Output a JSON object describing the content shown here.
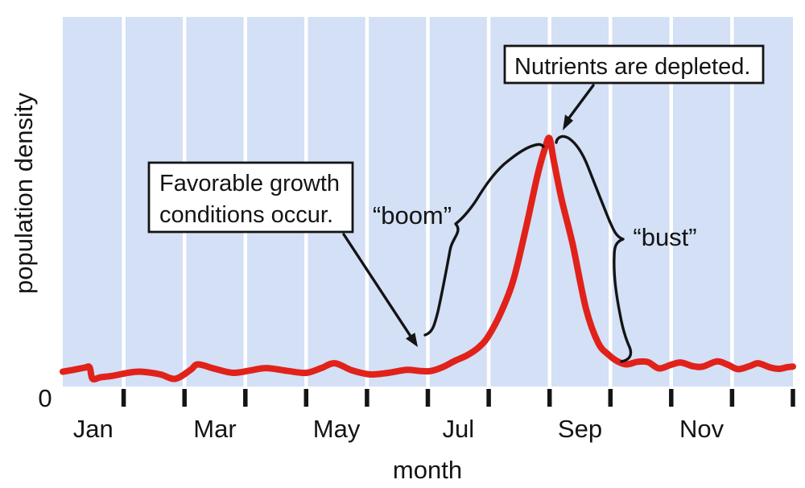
{
  "figure": {
    "y_axis_label": "population density",
    "x_axis_label": "month",
    "origin_label": "0"
  },
  "annotations": {
    "nutrients_box": "Nutrients are depleted.",
    "favorable_box": {
      "line1": "Favorable growth",
      "line2": "conditions occur."
    },
    "boom_label": "“boom”",
    "bust_label": "“bust”"
  },
  "colors": {
    "plot_bg": "#d3e0f6",
    "gridline": "#ffffff",
    "curve_red": "#e1221a",
    "ink": "#141414",
    "callout_bg": "#ffffff"
  },
  "chart_data": {
    "type": "line",
    "title": "",
    "xlabel": "month",
    "ylabel": "population density",
    "months_count": 12,
    "x_domain_months": [
      0,
      12
    ],
    "x_tick_labels_visible": [
      "Jan",
      "Mar",
      "May",
      "Jul",
      "Sep",
      "Nov"
    ],
    "y_axis_ticks": [
      "0"
    ],
    "y_range_relative": [
      0,
      1
    ],
    "grid": "vertical gridline at every month boundary; ticks below axis at each boundary",
    "legend": "none",
    "peak": {
      "month": 8.0,
      "relative_density": 0.67
    },
    "series": [
      {
        "name": "population density (relative)",
        "points": [
          [
            0.0,
            0.04
          ],
          [
            0.2,
            0.046
          ],
          [
            0.36,
            0.051
          ],
          [
            0.44,
            0.052
          ],
          [
            0.49,
            0.021
          ],
          [
            0.62,
            0.025
          ],
          [
            0.82,
            0.029
          ],
          [
            1.1,
            0.038
          ],
          [
            1.3,
            0.04
          ],
          [
            1.6,
            0.033
          ],
          [
            1.85,
            0.021
          ],
          [
            2.1,
            0.045
          ],
          [
            2.22,
            0.06
          ],
          [
            2.5,
            0.048
          ],
          [
            2.8,
            0.037
          ],
          [
            3.1,
            0.044
          ],
          [
            3.35,
            0.05
          ],
          [
            3.7,
            0.042
          ],
          [
            4.0,
            0.037
          ],
          [
            4.25,
            0.05
          ],
          [
            4.47,
            0.063
          ],
          [
            4.75,
            0.044
          ],
          [
            5.05,
            0.033
          ],
          [
            5.35,
            0.037
          ],
          [
            5.65,
            0.045
          ],
          [
            5.88,
            0.042
          ],
          [
            6.05,
            0.042
          ],
          [
            6.25,
            0.053
          ],
          [
            6.45,
            0.07
          ],
          [
            6.65,
            0.085
          ],
          [
            6.85,
            0.108
          ],
          [
            7.0,
            0.138
          ],
          [
            7.2,
            0.2
          ],
          [
            7.4,
            0.285
          ],
          [
            7.6,
            0.42
          ],
          [
            7.8,
            0.57
          ],
          [
            7.93,
            0.648
          ],
          [
            8.0,
            0.671
          ],
          [
            8.07,
            0.61
          ],
          [
            8.2,
            0.505
          ],
          [
            8.38,
            0.385
          ],
          [
            8.6,
            0.21
          ],
          [
            8.8,
            0.118
          ],
          [
            8.97,
            0.086
          ],
          [
            9.12,
            0.068
          ],
          [
            9.27,
            0.06
          ],
          [
            9.45,
            0.067
          ],
          [
            9.62,
            0.066
          ],
          [
            9.8,
            0.049
          ],
          [
            10.0,
            0.059
          ],
          [
            10.16,
            0.065
          ],
          [
            10.36,
            0.055
          ],
          [
            10.52,
            0.054
          ],
          [
            10.75,
            0.068
          ],
          [
            10.93,
            0.059
          ],
          [
            11.1,
            0.047
          ],
          [
            11.3,
            0.056
          ],
          [
            11.43,
            0.063
          ],
          [
            11.62,
            0.052
          ],
          [
            11.77,
            0.048
          ],
          [
            11.9,
            0.052
          ],
          [
            12.0,
            0.054
          ]
        ]
      }
    ]
  }
}
